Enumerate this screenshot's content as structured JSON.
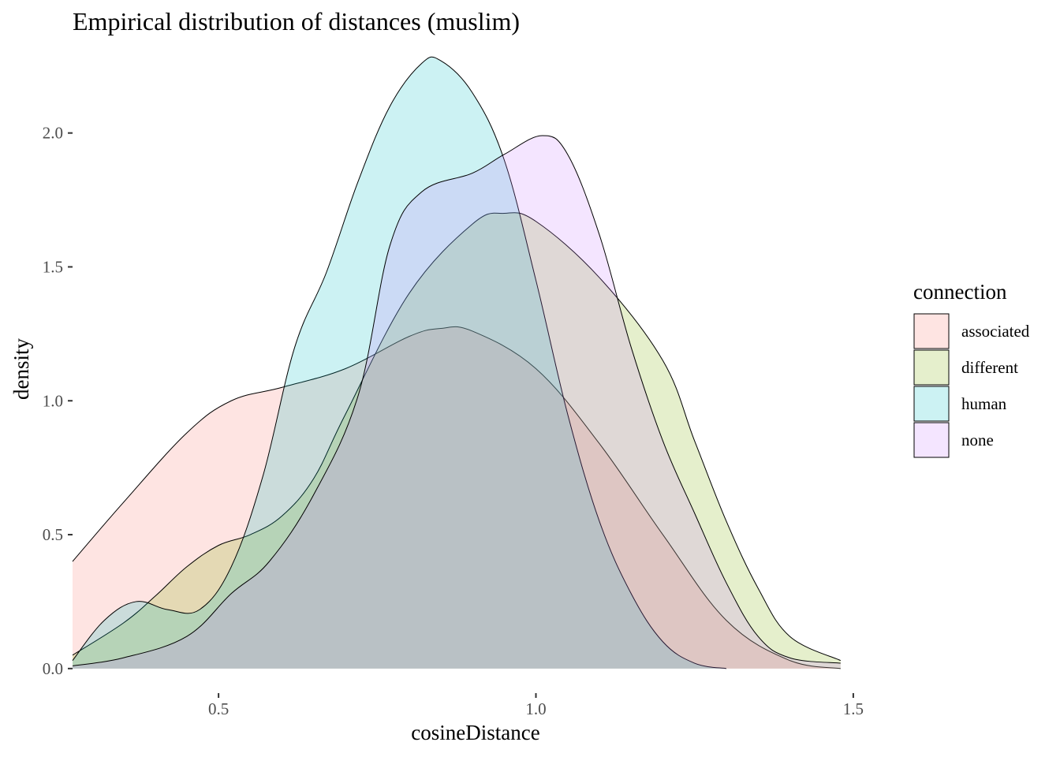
{
  "chart_data": {
    "type": "area",
    "title": "Empirical distribution of distances (muslim)",
    "xlabel": "cosineDistance",
    "ylabel": "density",
    "xlim": [
      0.27,
      1.48
    ],
    "ylim": [
      0,
      2.3
    ],
    "x_axis_min": 0.27,
    "x_axis_max": 1.52,
    "y_axis_min": -0.08,
    "y_axis_max": 2.32,
    "xticks": [
      0.5,
      1.0,
      1.5
    ],
    "xtick_labels": [
      "0.5",
      "1.0",
      "1.5"
    ],
    "yticks": [
      0.0,
      0.5,
      1.0,
      1.5,
      2.0
    ],
    "ytick_labels": [
      "0.0",
      "0.5",
      "1.0",
      "1.5",
      "2.0"
    ],
    "grid": false,
    "legend": {
      "title": "connection",
      "position": "right",
      "entries": [
        "associated",
        "different",
        "human",
        "none"
      ]
    },
    "series": [
      {
        "name": "associated",
        "color": "#F8766D",
        "x": [
          0.27,
          0.35,
          0.45,
          0.52,
          0.6,
          0.7,
          0.8,
          0.85,
          0.9,
          1.0,
          1.1,
          1.2,
          1.3,
          1.4,
          1.48
        ],
        "y": [
          0.4,
          0.62,
          0.88,
          1.0,
          1.05,
          1.12,
          1.24,
          1.27,
          1.26,
          1.12,
          0.84,
          0.5,
          0.18,
          0.03,
          0.0
        ]
      },
      {
        "name": "different",
        "color": "#7CAE00",
        "x": [
          0.27,
          0.35,
          0.4,
          0.45,
          0.5,
          0.55,
          0.6,
          0.65,
          0.7,
          0.8,
          0.9,
          0.95,
          1.0,
          1.1,
          1.2,
          1.25,
          1.3,
          1.35,
          1.4,
          1.48
        ],
        "y": [
          0.05,
          0.17,
          0.27,
          0.38,
          0.46,
          0.5,
          0.57,
          0.71,
          0.95,
          1.4,
          1.66,
          1.7,
          1.67,
          1.46,
          1.15,
          0.85,
          0.55,
          0.3,
          0.12,
          0.03
        ]
      },
      {
        "name": "human",
        "color": "#00BFC4",
        "x": [
          0.27,
          0.32,
          0.37,
          0.42,
          0.47,
          0.52,
          0.57,
          0.62,
          0.67,
          0.72,
          0.77,
          0.82,
          0.85,
          0.9,
          0.95,
          1.0,
          1.05,
          1.1,
          1.15,
          1.2,
          1.25,
          1.3
        ],
        "y": [
          0.03,
          0.18,
          0.25,
          0.22,
          0.22,
          0.38,
          0.72,
          1.2,
          1.48,
          1.82,
          2.1,
          2.26,
          2.27,
          2.15,
          1.9,
          1.45,
          0.95,
          0.55,
          0.28,
          0.1,
          0.02,
          0.0
        ]
      },
      {
        "name": "none",
        "color": "#C77CFF",
        "x": [
          0.27,
          0.35,
          0.45,
          0.52,
          0.58,
          0.65,
          0.72,
          0.77,
          0.82,
          0.9,
          0.95,
          1.01,
          1.05,
          1.1,
          1.15,
          1.2,
          1.25,
          1.3,
          1.35,
          1.4,
          1.48
        ],
        "y": [
          0.01,
          0.04,
          0.12,
          0.28,
          0.4,
          0.65,
          1.02,
          1.58,
          1.78,
          1.85,
          1.92,
          1.99,
          1.92,
          1.62,
          1.2,
          0.85,
          0.58,
          0.32,
          0.12,
          0.04,
          0.02
        ]
      }
    ]
  }
}
